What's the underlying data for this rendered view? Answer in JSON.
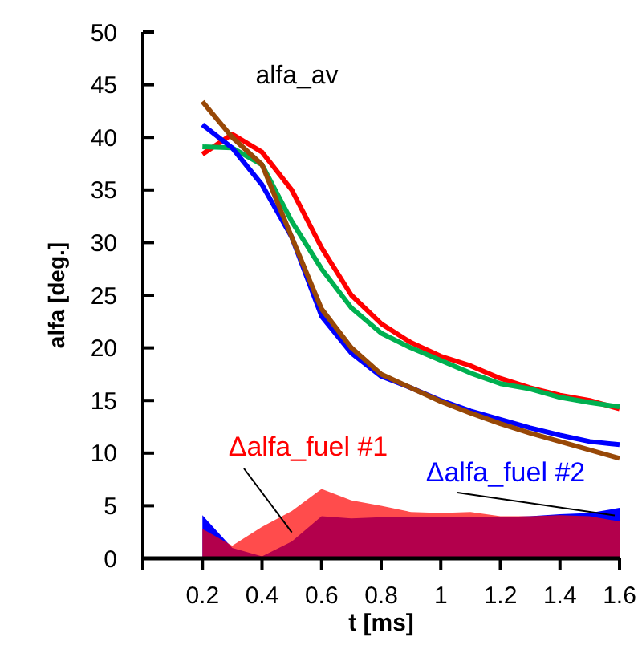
{
  "chart_data": {
    "type": "line",
    "xlabel": "t [ms]",
    "ylabel": "alfa [deg.]",
    "annotations": [
      "alfa_av"
    ],
    "x": [
      0.2,
      0.3,
      0.4,
      0.5,
      0.6,
      0.7,
      0.8,
      0.9,
      1.0,
      1.1,
      1.2,
      1.3,
      1.4,
      1.5,
      1.6
    ],
    "xlim": [
      0,
      1.6
    ],
    "xticks": [
      0.2,
      0.4,
      0.6,
      0.8,
      1,
      1.2,
      1.4,
      1.6
    ],
    "ylim": [
      0,
      50
    ],
    "yticks": [
      0,
      5,
      10,
      15,
      20,
      25,
      30,
      35,
      40,
      45,
      50
    ],
    "grid": false,
    "marker": "none",
    "line_style": "solid",
    "series": [
      {
        "type": "area",
        "name": "Δalfa_fuel #2",
        "color": "#0000ff",
        "values": [
          4.1,
          1,
          0.2,
          1.6,
          4.0,
          3.8,
          3.9,
          3.9,
          3.9,
          3.9,
          3.9,
          4.0,
          4.2,
          4.3,
          4.8
        ]
      },
      {
        "type": "area",
        "name": "Δalfa_fuel #1",
        "color": "#ff0000",
        "values": [
          2.8,
          1.2,
          3,
          4.5,
          6.6,
          5.5,
          5,
          4.4,
          4.3,
          4.4,
          4.0,
          4.0,
          4.1,
          4.0,
          3.5
        ]
      },
      {
        "color": "#ff0000",
        "values": [
          38.4,
          40.3,
          38.6,
          35,
          29.5,
          25,
          22.3,
          20.5,
          19.2,
          18.3,
          17.1,
          16.2,
          15.5,
          15,
          14.2
        ]
      },
      {
        "color": "#00b050",
        "values": [
          39.1,
          39.0,
          37.4,
          32,
          27.5,
          23.8,
          21.4,
          20,
          18.8,
          17.6,
          16.6,
          16.1,
          15.3,
          14.8,
          14.4
        ]
      },
      {
        "color": "#0000ff",
        "values": [
          41.2,
          39,
          35.5,
          30.5,
          23,
          19.5,
          17.3,
          16.2,
          15,
          14,
          13.2,
          12.4,
          11.7,
          11.1,
          10.8
        ]
      },
      {
        "color": "#984807",
        "values": [
          43.4,
          40,
          37.4,
          30.5,
          23.7,
          20,
          17.5,
          16.2,
          14.9,
          13.8,
          12.8,
          11.9,
          11.1,
          10.3,
          9.5
        ]
      }
    ]
  }
}
